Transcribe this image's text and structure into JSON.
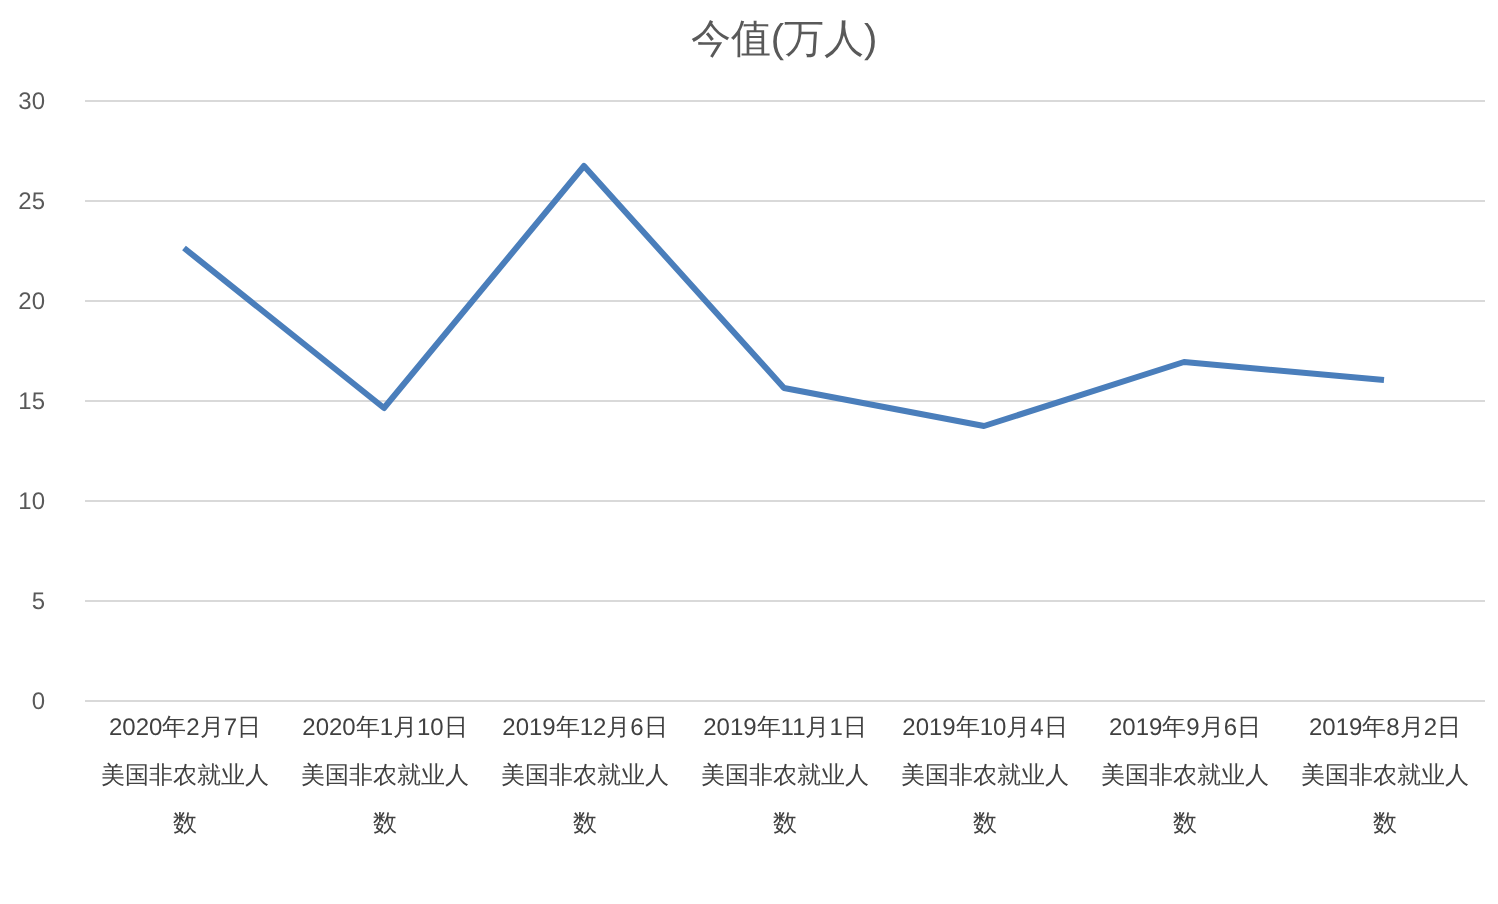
{
  "chart_data": {
    "type": "line",
    "title": "今值(万人)",
    "categories": [
      "2020年2月7日美国非农就业人数",
      "2020年1月10日美国非农就业人数",
      "2019年12月6日美国非农就业人数",
      "2019年11月1日美国非农就业人数",
      "2019年10月4日美国非农就业人数",
      "2019年9月6日美国非农就业人数",
      "2019年8月2日美国非农就业人数"
    ],
    "series": [
      {
        "color": "#4a7ebb",
        "values": [
          22.6,
          14.6,
          26.7,
          15.6,
          13.7,
          16.9,
          16.0
        ]
      }
    ],
    "ylim": [
      0,
      30
    ],
    "yticks": [
      0,
      5,
      10,
      15,
      20,
      25,
      30
    ],
    "grid": "y",
    "legend": false,
    "marker": "none",
    "line_style": "solid"
  }
}
